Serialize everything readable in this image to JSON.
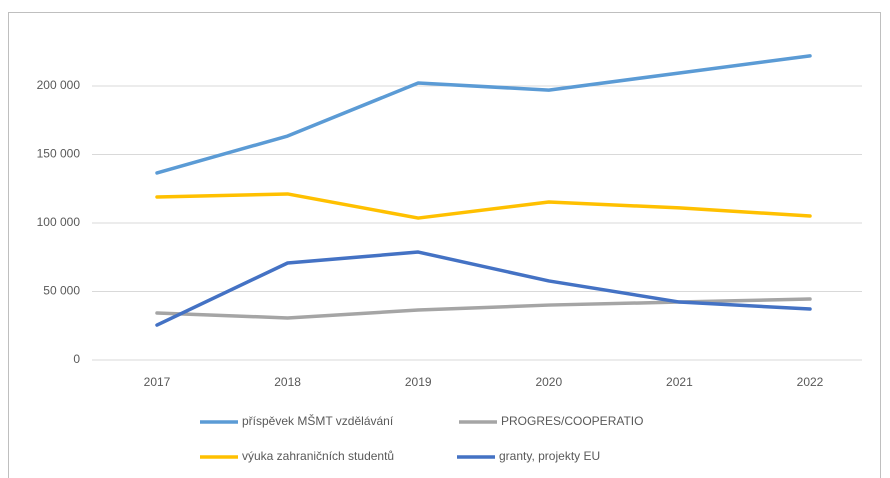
{
  "chart_data": {
    "type": "line",
    "categories": [
      "2017",
      "2018",
      "2019",
      "2020",
      "2021",
      "2022"
    ],
    "series": [
      {
        "name": "příspěvek MŠMT vzdělávání",
        "color": "#5b9bd5",
        "values": [
          136500,
          163500,
          202200,
          197000,
          209500,
          222000
        ]
      },
      {
        "name": "PROGRES/COOPERATIO",
        "color": "#a5a5a5",
        "values": [
          34300,
          30700,
          36500,
          40100,
          42300,
          44500
        ]
      },
      {
        "name": "výuka zahraničních studentů",
        "color": "#ffc000",
        "values": [
          119000,
          121200,
          103600,
          115300,
          111000,
          105100
        ]
      },
      {
        "name": "granty, projekty EU",
        "color": "#4472c4",
        "values": [
          25500,
          70800,
          78800,
          57700,
          42300,
          37200
        ]
      }
    ],
    "ylim": [
      0,
      250000
    ],
    "yticks": [
      0,
      {
        "value": 50000,
        "label": "50 000"
      },
      {
        "value": 100000,
        "label": "100 000"
      },
      {
        "value": 150000,
        "label": "150 000"
      },
      {
        "value": 200000,
        "label": "200 000"
      }
    ],
    "grid": true,
    "legend": "bottom"
  }
}
